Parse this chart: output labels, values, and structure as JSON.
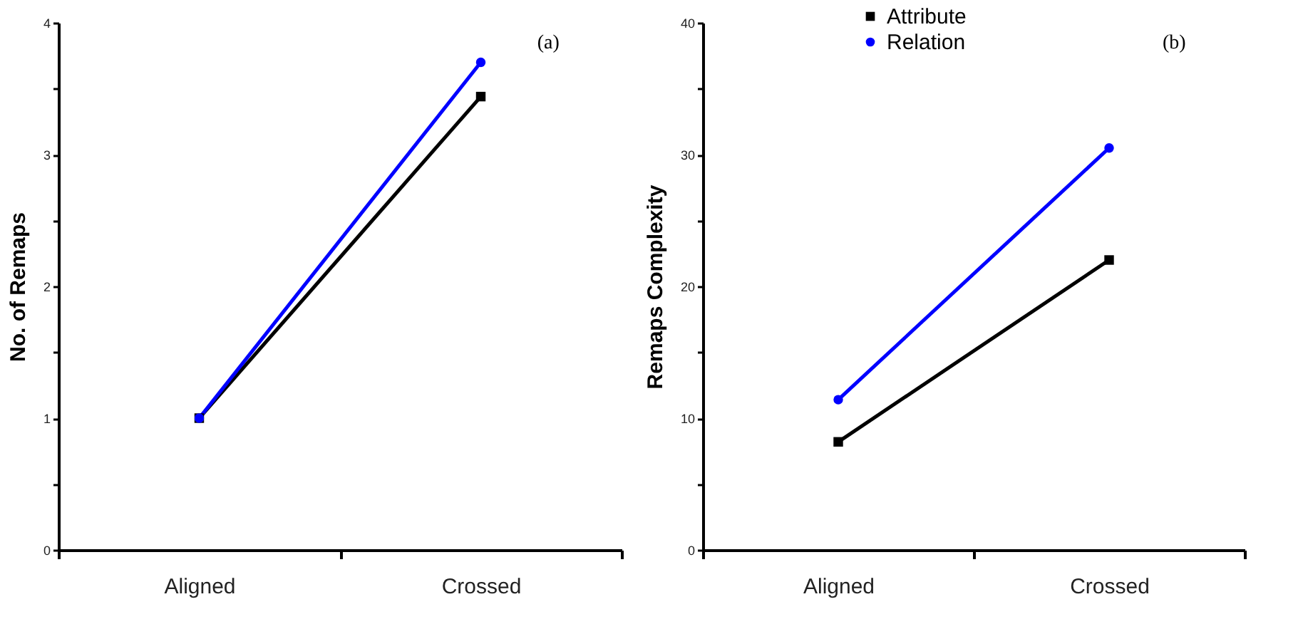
{
  "chart_data": [
    {
      "type": "line",
      "categories": [
        "Aligned",
        "Crossed"
      ],
      "ylabel": "No.  of  Remaps",
      "ylim": [
        0,
        4
      ],
      "yticks": [
        0,
        {
          "value": 0.5,
          "label": null
        },
        1,
        {
          "value": 1.5,
          "label": null
        },
        2,
        {
          "value": 2.5,
          "label": null
        },
        3,
        {
          "value": 3.5,
          "label": null
        },
        4
      ],
      "annotations": [
        "(a)"
      ],
      "grid": false,
      "series": [
        {
          "color": "#000000",
          "marker": "square",
          "values": [
            1,
            3.44
          ]
        },
        {
          "color": "#0000ff",
          "marker": "circle",
          "values": [
            1,
            3.7
          ]
        }
      ]
    },
    {
      "type": "line",
      "categories": [
        "Aligned",
        "Crossed"
      ],
      "ylabel": "Remaps   Complexity",
      "ylim": [
        0,
        40
      ],
      "yticks": [
        0,
        {
          "value": 5,
          "label": null
        },
        10,
        {
          "value": 15,
          "label": null
        },
        20,
        {
          "value": 25,
          "label": null
        },
        30,
        {
          "value": 35,
          "label": null
        },
        40
      ],
      "annotations": [
        "(b)"
      ],
      "grid": false,
      "legend": "top",
      "series": [
        {
          "name": "Attribute",
          "color": "#000000",
          "marker": "square",
          "values": [
            8.2,
            22
          ]
        },
        {
          "name": "Relation",
          "color": "#0000ff",
          "marker": "circle",
          "values": [
            11.4,
            30.5
          ]
        }
      ]
    }
  ]
}
